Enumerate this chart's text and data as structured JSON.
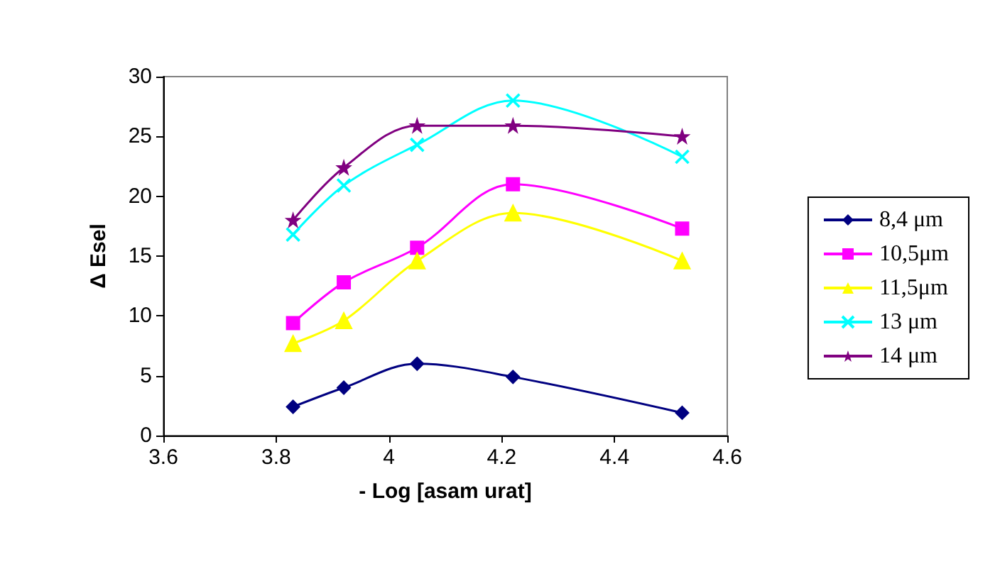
{
  "chart_data": {
    "type": "line",
    "xlabel": "- Log [asam urat]",
    "ylabel": "Δ Esel",
    "x": [
      3.83,
      3.92,
      4.05,
      4.22,
      4.52
    ],
    "xlim": [
      3.6,
      4.6
    ],
    "xticks": [
      3.6,
      3.8,
      4,
      4.2,
      4.4,
      4.6
    ],
    "ylim": [
      0,
      30
    ],
    "yticks": [
      0,
      5,
      10,
      15,
      20,
      25,
      30
    ],
    "grid": false,
    "legend": "right",
    "series": [
      {
        "name": "8,4 μm",
        "color": "#000080",
        "marker": "diamond",
        "values": [
          2.4,
          4.0,
          6.0,
          4.9,
          1.9
        ]
      },
      {
        "name": "10,5μm",
        "color": "#ff00ff",
        "marker": "square",
        "values": [
          9.4,
          12.8,
          15.7,
          21.0,
          17.3
        ]
      },
      {
        "name": "11,5μm",
        "color": "#ffff00",
        "marker": "triangle",
        "values": [
          7.7,
          9.6,
          14.6,
          18.6,
          14.6
        ]
      },
      {
        "name": "13 μm",
        "color": "#00ffff",
        "marker": "cross",
        "values": [
          16.8,
          20.9,
          24.3,
          28.0,
          23.3
        ]
      },
      {
        "name": "14 μm",
        "color": "#800080",
        "marker": "star",
        "values": [
          18.0,
          22.4,
          25.9,
          25.9,
          25.0
        ]
      }
    ]
  }
}
